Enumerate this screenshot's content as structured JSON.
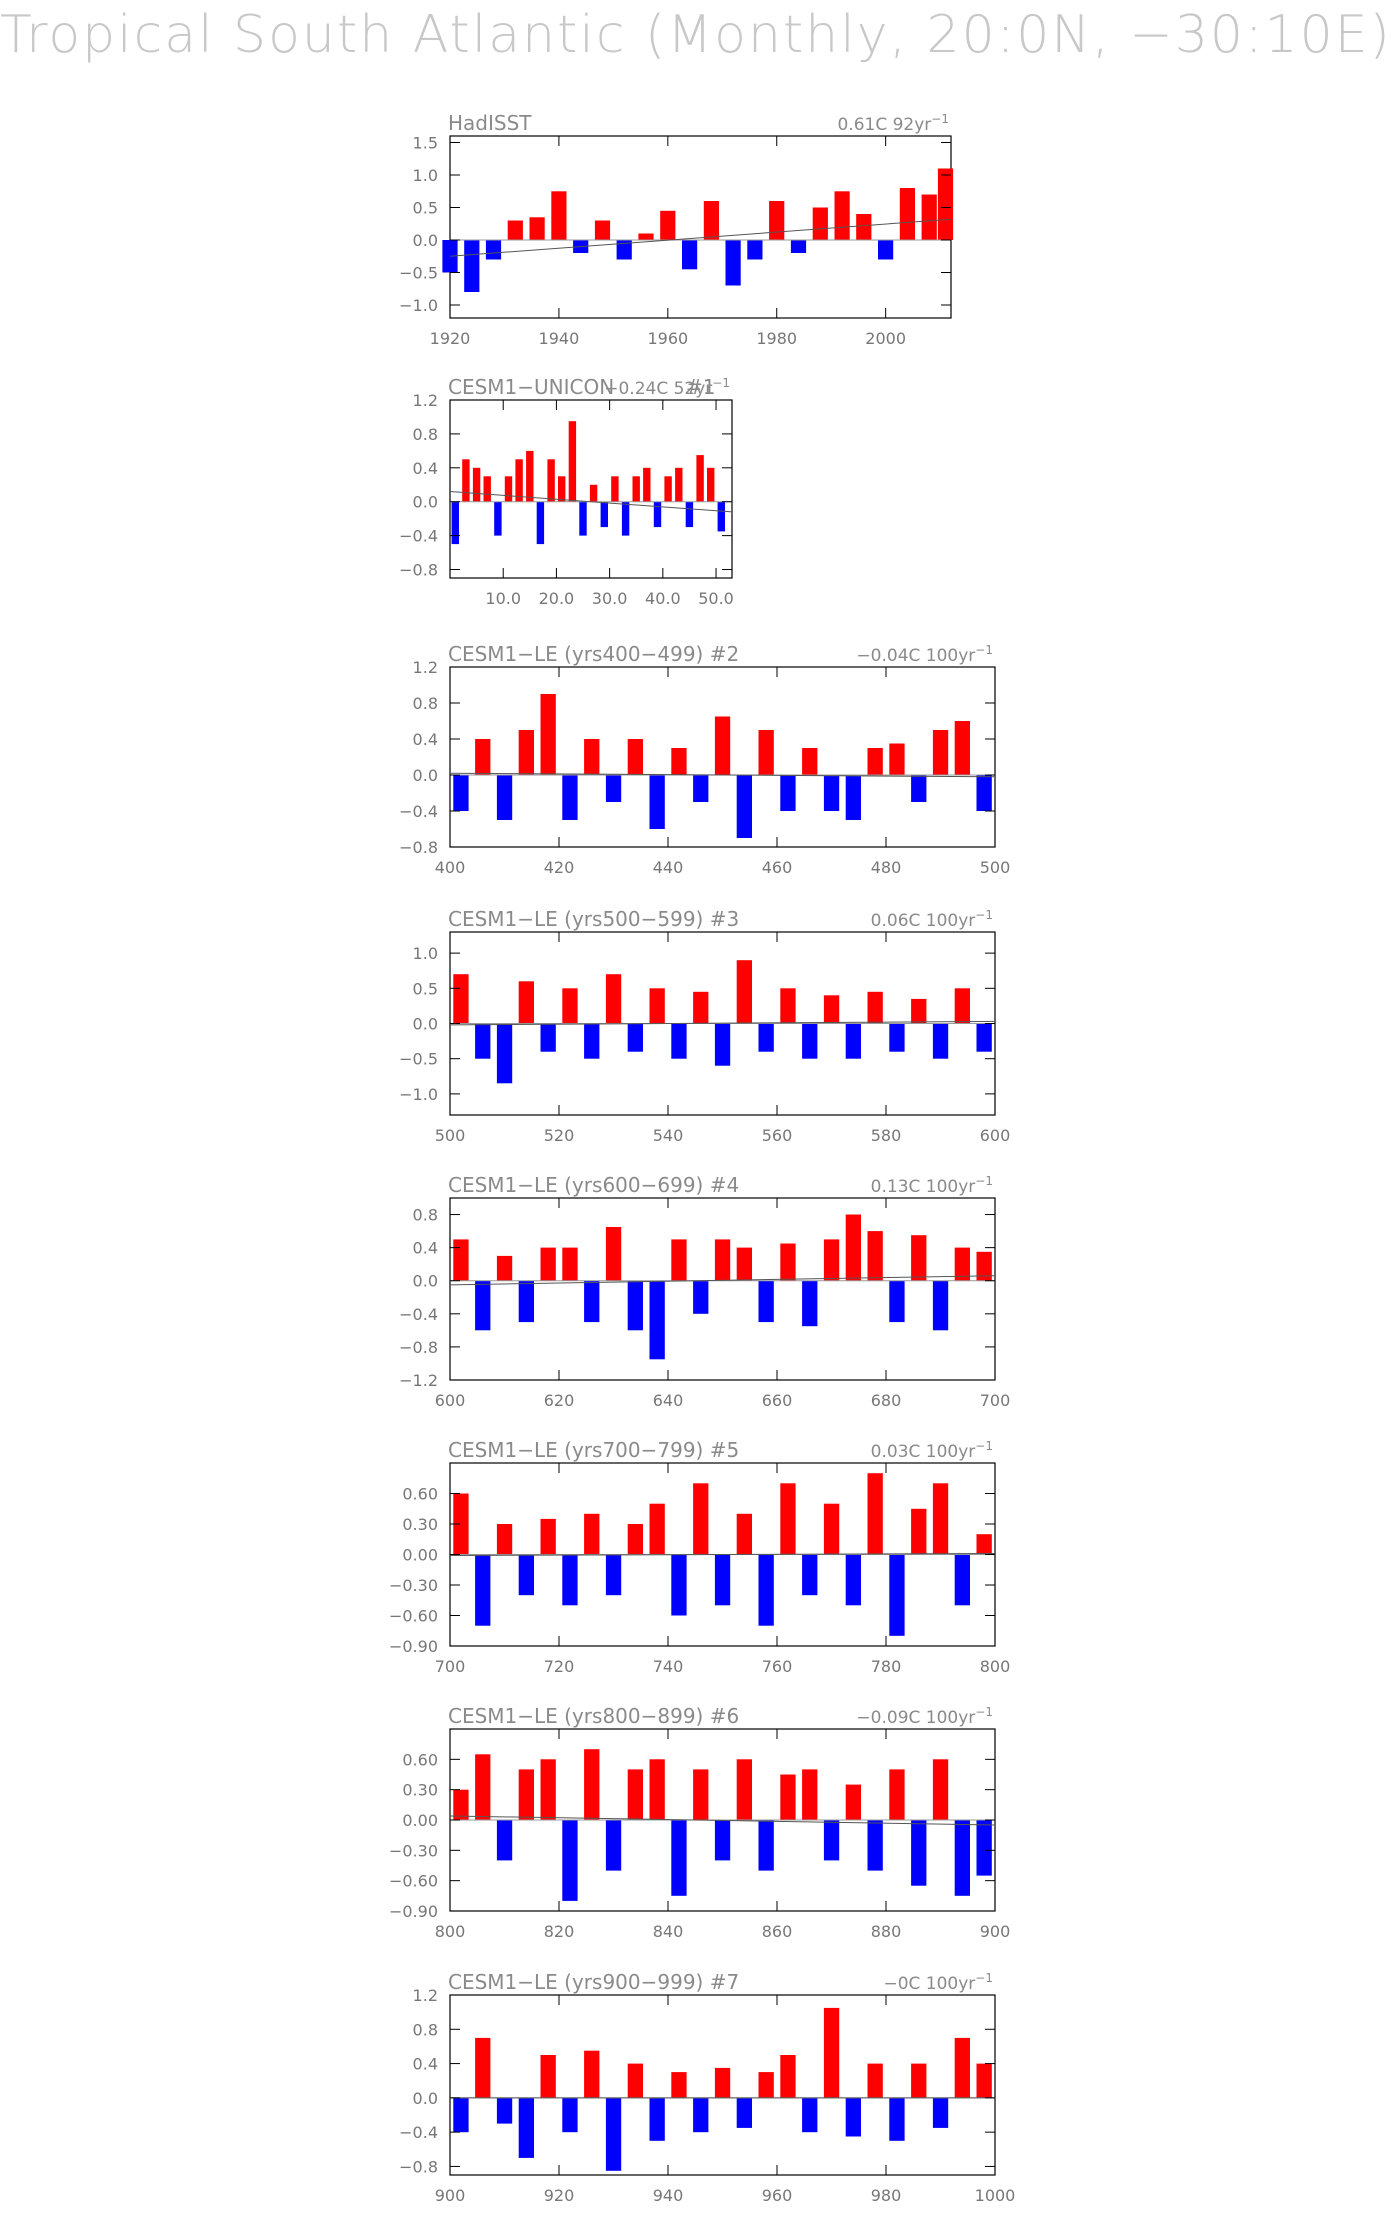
{
  "page": {
    "title": "Tropical South Atlantic (Monthly, 20:0N, −30:10E)"
  },
  "chart_data": [
    {
      "type": "bar",
      "title": "HadISST",
      "trend": "0.61C 92yr",
      "trend_unit_sup": "−1",
      "xlim": [
        1920,
        2012
      ],
      "ylim": [
        -1.2,
        1.6
      ],
      "xticks": [
        1920,
        1940,
        1960,
        1980,
        2000
      ],
      "xtick_labels": [
        "1920",
        "1940",
        "1960",
        "1980",
        "2000"
      ],
      "yticks": [
        1.5,
        1.0,
        0.5,
        0.0,
        -0.5,
        -1.0
      ],
      "ytick_labels": [
        "1.5",
        "1.0",
        "0.5",
        "0.0",
        "−0.5",
        "−1.0"
      ],
      "x": [
        1920,
        1924,
        1928,
        1932,
        1936,
        1940,
        1944,
        1948,
        1952,
        1956,
        1960,
        1964,
        1968,
        1972,
        1976,
        1980,
        1984,
        1988,
        1992,
        1996,
        2000,
        2004,
        2008,
        2011
      ],
      "values": [
        -0.5,
        -0.8,
        -0.3,
        0.3,
        0.35,
        0.75,
        -0.2,
        0.3,
        -0.3,
        0.1,
        0.45,
        -0.45,
        0.6,
        -0.7,
        -0.3,
        0.6,
        -0.2,
        0.5,
        0.75,
        0.4,
        -0.3,
        0.8,
        0.7,
        1.1
      ],
      "trend_line": [
        -0.25,
        0.32
      ]
    },
    {
      "type": "bar",
      "title": "CESM1−UNICON",
      "trend": "−0.24C 52yr",
      "trend_unit_sup": "−1",
      "extra_label": "#1",
      "xlim": [
        0,
        53
      ],
      "ylim": [
        -0.9,
        1.2
      ],
      "xticks": [
        10,
        20,
        30,
        40,
        50
      ],
      "xtick_labels": [
        "10.0",
        "20.0",
        "30.0",
        "40.0",
        "50.0"
      ],
      "yticks": [
        1.2,
        0.8,
        0.4,
        0.0,
        -0.4,
        -0.8
      ],
      "ytick_labels": [
        "1.2",
        "0.8",
        "0.4",
        "0.0",
        "−0.4",
        "−0.8"
      ],
      "x": [
        1,
        3,
        5,
        7,
        9,
        11,
        13,
        15,
        17,
        19,
        21,
        23,
        25,
        27,
        29,
        31,
        33,
        35,
        37,
        39,
        41,
        43,
        45,
        47,
        49,
        51
      ],
      "values": [
        -0.5,
        0.5,
        0.4,
        0.3,
        -0.4,
        0.3,
        0.5,
        0.6,
        -0.5,
        0.5,
        0.3,
        0.95,
        -0.4,
        0.2,
        -0.3,
        0.3,
        -0.4,
        0.3,
        0.4,
        -0.3,
        0.3,
        0.4,
        -0.3,
        0.55,
        0.4,
        -0.35
      ],
      "trend_line": [
        0.12,
        -0.12
      ]
    },
    {
      "type": "bar",
      "title": "CESM1−LE (yrs400−499) #2",
      "trend": "−0.04C 100yr",
      "trend_unit_sup": "−1",
      "xlim": [
        400,
        500
      ],
      "ylim": [
        -0.8,
        1.2
      ],
      "xticks": [
        400,
        420,
        440,
        460,
        480,
        500
      ],
      "xtick_labels": [
        "400",
        "420",
        "440",
        "460",
        "480",
        "500"
      ],
      "yticks": [
        1.2,
        0.8,
        0.4,
        0.0,
        -0.4,
        -0.8
      ],
      "ytick_labels": [
        "1.2",
        "0.8",
        "0.4",
        "0.0",
        "−0.4",
        "−0.8"
      ],
      "x": [
        402,
        406,
        410,
        414,
        418,
        422,
        426,
        430,
        434,
        438,
        442,
        446,
        450,
        454,
        458,
        462,
        466,
        470,
        474,
        478,
        482,
        486,
        490,
        494,
        498
      ],
      "values": [
        -0.4,
        0.4,
        -0.5,
        0.5,
        0.9,
        -0.5,
        0.4,
        -0.3,
        0.4,
        -0.6,
        0.3,
        -0.3,
        0.65,
        -0.7,
        0.5,
        -0.4,
        0.3,
        -0.4,
        -0.5,
        0.3,
        0.35,
        -0.3,
        0.5,
        0.6,
        -0.4
      ],
      "trend_line": [
        0.02,
        -0.02
      ]
    },
    {
      "type": "bar",
      "title": "CESM1−LE (yrs500−599) #3",
      "trend": "0.06C 100yr",
      "trend_unit_sup": "−1",
      "xlim": [
        500,
        600
      ],
      "ylim": [
        -1.3,
        1.3
      ],
      "xticks": [
        500,
        520,
        540,
        560,
        580,
        600
      ],
      "xtick_labels": [
        "500",
        "520",
        "540",
        "560",
        "580",
        "600"
      ],
      "yticks": [
        1.0,
        0.5,
        0.0,
        -0.5,
        -1.0
      ],
      "ytick_labels": [
        "1.0",
        "0.5",
        "0.0",
        "−0.5",
        "−1.0"
      ],
      "x": [
        502,
        506,
        510,
        514,
        518,
        522,
        526,
        530,
        534,
        538,
        542,
        546,
        550,
        554,
        558,
        562,
        566,
        570,
        574,
        578,
        582,
        586,
        590,
        594,
        598
      ],
      "values": [
        0.7,
        -0.5,
        -0.85,
        0.6,
        -0.4,
        0.5,
        -0.5,
        0.7,
        -0.4,
        0.5,
        -0.5,
        0.45,
        -0.6,
        0.9,
        -0.4,
        0.5,
        -0.5,
        0.4,
        -0.5,
        0.45,
        -0.4,
        0.35,
        -0.5,
        0.5,
        -0.4
      ],
      "trend_line": [
        -0.02,
        0.03
      ]
    },
    {
      "type": "bar",
      "title": "CESM1−LE (yrs600−699) #4",
      "trend": "0.13C 100yr",
      "trend_unit_sup": "−1",
      "xlim": [
        600,
        700
      ],
      "ylim": [
        -1.2,
        1.0
      ],
      "xticks": [
        600,
        620,
        640,
        660,
        680,
        700
      ],
      "xtick_labels": [
        "600",
        "620",
        "640",
        "660",
        "680",
        "700"
      ],
      "yticks": [
        0.8,
        0.4,
        0.0,
        -0.4,
        -0.8,
        -1.2
      ],
      "ytick_labels": [
        "0.8",
        "0.4",
        "0.0",
        "−0.4",
        "−0.8",
        "−1.2"
      ],
      "x": [
        602,
        606,
        610,
        614,
        618,
        622,
        626,
        630,
        634,
        638,
        642,
        646,
        650,
        654,
        658,
        662,
        666,
        670,
        674,
        678,
        682,
        686,
        690,
        694,
        698
      ],
      "values": [
        0.5,
        -0.6,
        0.3,
        -0.5,
        0.4,
        0.4,
        -0.5,
        0.65,
        -0.6,
        -0.95,
        0.5,
        -0.4,
        0.5,
        0.4,
        -0.5,
        0.45,
        -0.55,
        0.5,
        0.8,
        0.6,
        -0.5,
        0.55,
        -0.6,
        0.4,
        0.35
      ],
      "trend_line": [
        -0.05,
        0.06
      ]
    },
    {
      "type": "bar",
      "title": "CESM1−LE (yrs700−799) #5",
      "trend": "0.03C 100yr",
      "trend_unit_sup": "−1",
      "xlim": [
        700,
        800
      ],
      "ylim": [
        -0.9,
        0.9
      ],
      "xticks": [
        700,
        720,
        740,
        760,
        780,
        800
      ],
      "xtick_labels": [
        "700",
        "720",
        "740",
        "760",
        "780",
        "800"
      ],
      "yticks": [
        0.6,
        0.3,
        0.0,
        -0.3,
        -0.6,
        -0.9
      ],
      "ytick_labels": [
        "0.60",
        "0.30",
        "0.00",
        "−0.30",
        "−0.60",
        "−0.90"
      ],
      "x": [
        702,
        706,
        710,
        714,
        718,
        722,
        726,
        730,
        734,
        738,
        742,
        746,
        750,
        754,
        758,
        762,
        766,
        770,
        774,
        778,
        782,
        786,
        790,
        794,
        798
      ],
      "values": [
        0.6,
        -0.7,
        0.3,
        -0.4,
        0.35,
        -0.5,
        0.4,
        -0.4,
        0.3,
        0.5,
        -0.6,
        0.7,
        -0.5,
        0.4,
        -0.7,
        0.7,
        -0.4,
        0.5,
        -0.5,
        0.8,
        -0.8,
        0.45,
        0.7,
        -0.5,
        0.2
      ],
      "trend_line": [
        -0.01,
        0.01
      ]
    },
    {
      "type": "bar",
      "title": "CESM1−LE (yrs800−899) #6",
      "trend": "−0.09C 100yr",
      "trend_unit_sup": "−1",
      "xlim": [
        800,
        900
      ],
      "ylim": [
        -0.9,
        0.9
      ],
      "xticks": [
        800,
        820,
        840,
        860,
        880,
        900
      ],
      "xtick_labels": [
        "800",
        "820",
        "840",
        "860",
        "880",
        "900"
      ],
      "yticks": [
        0.6,
        0.3,
        0.0,
        -0.3,
        -0.6,
        -0.9
      ],
      "ytick_labels": [
        "0.60",
        "0.30",
        "0.00",
        "−0.30",
        "−0.60",
        "−0.90"
      ],
      "x": [
        802,
        806,
        810,
        814,
        818,
        822,
        826,
        830,
        834,
        838,
        842,
        846,
        850,
        854,
        858,
        862,
        866,
        870,
        874,
        878,
        882,
        886,
        890,
        894,
        898
      ],
      "values": [
        0.3,
        0.65,
        -0.4,
        0.5,
        0.6,
        -0.8,
        0.7,
        -0.5,
        0.5,
        0.6,
        -0.75,
        0.5,
        -0.4,
        0.6,
        -0.5,
        0.45,
        0.5,
        -0.4,
        0.35,
        -0.5,
        0.5,
        -0.65,
        0.6,
        -0.75,
        -0.55
      ],
      "trend_line": [
        0.04,
        -0.05
      ]
    },
    {
      "type": "bar",
      "title": "CESM1−LE (yrs900−999) #7",
      "trend": "−0C 100yr",
      "trend_unit_sup": "−1",
      "xlim": [
        900,
        1000
      ],
      "ylim": [
        -0.9,
        1.2
      ],
      "xticks": [
        900,
        920,
        940,
        960,
        980,
        1000
      ],
      "xtick_labels": [
        "900",
        "920",
        "940",
        "960",
        "980",
        "1000"
      ],
      "yticks": [
        1.2,
        0.8,
        0.4,
        0.0,
        -0.4,
        -0.8
      ],
      "ytick_labels": [
        "1.2",
        "0.8",
        "0.4",
        "0.0",
        "−0.4",
        "−0.8"
      ],
      "x": [
        902,
        906,
        910,
        914,
        918,
        922,
        926,
        930,
        934,
        938,
        942,
        946,
        950,
        954,
        958,
        962,
        966,
        970,
        974,
        978,
        982,
        986,
        990,
        994,
        998
      ],
      "values": [
        -0.4,
        0.7,
        -0.3,
        -0.7,
        0.5,
        -0.4,
        0.55,
        -0.85,
        0.4,
        -0.5,
        0.3,
        -0.4,
        0.35,
        -0.35,
        0.3,
        0.5,
        -0.4,
        1.05,
        -0.45,
        0.4,
        -0.5,
        0.4,
        -0.35,
        0.7,
        0.4
      ],
      "trend_line": [
        0.0,
        0.0
      ]
    }
  ]
}
